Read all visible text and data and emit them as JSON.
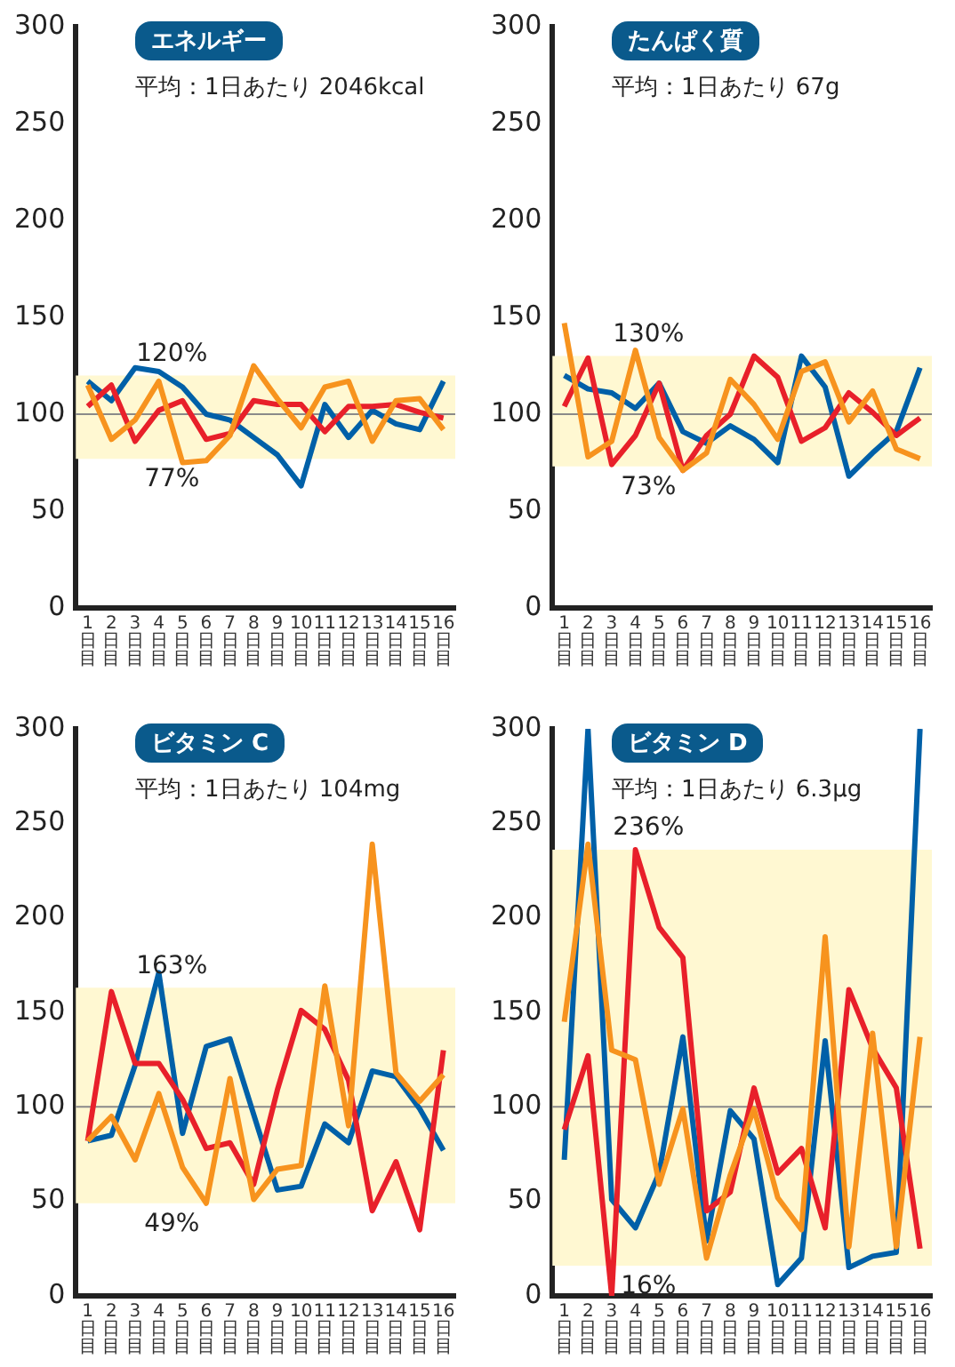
{
  "chart_data": [
    {
      "type": "line",
      "title": "エネルギー",
      "subtitle": "平均：1日あたり 2046kcal",
      "categories": [
        "1日目",
        "2日目",
        "3日目",
        "4日目",
        "5日目",
        "6日目",
        "7日目",
        "8日目",
        "9日目",
        "10日目",
        "11日目",
        "12日目",
        "13日目",
        "14日目",
        "15日目",
        "16日目"
      ],
      "marker": "none",
      "ylim": [
        0,
        300
      ],
      "yticks": [
        0,
        50,
        100,
        150,
        200,
        250,
        300
      ],
      "series": [
        {
          "color": "#f7931e",
          "values": [
            115,
            87,
            97,
            117,
            75,
            76,
            89,
            125,
            108,
            93,
            114,
            117,
            86,
            107,
            108,
            92
          ]
        },
        {
          "color": "#e8202a",
          "values": [
            104,
            115,
            86,
            102,
            107,
            87,
            90,
            107,
            105,
            105,
            91,
            104,
            104,
            105,
            101,
            98
          ]
        },
        {
          "color": "#0060a8",
          "values": [
            117,
            107,
            124,
            122,
            114,
            100,
            97,
            88,
            79,
            63,
            105,
            88,
            102,
            95,
            92,
            117
          ]
        }
      ],
      "bands": [
        {
          "axis": "y",
          "from": 77,
          "to": 120,
          "color": "#fff8d2"
        }
      ],
      "ref_lines": [
        {
          "axis": "y",
          "value": 100,
          "color": "#8a8a8a"
        }
      ],
      "annotations": [
        {
          "text": "120%",
          "y": 120
        },
        {
          "text": "77%",
          "y": 77
        }
      ]
    },
    {
      "type": "line",
      "title": "たんぱく質",
      "subtitle": "平均：1日あたり 67g",
      "categories": [
        "1日目",
        "2日目",
        "3日目",
        "4日目",
        "5日目",
        "6日目",
        "7日目",
        "8日目",
        "9日目",
        "10日目",
        "11日目",
        "12日目",
        "13日目",
        "14日目",
        "15日目",
        "16日目"
      ],
      "marker": "none",
      "ylim": [
        0,
        300
      ],
      "yticks": [
        0,
        50,
        100,
        150,
        200,
        250,
        300
      ],
      "series": [
        {
          "color": "#f7931e",
          "values": [
            147,
            78,
            86,
            133,
            88,
            71,
            80,
            118,
            105,
            87,
            122,
            127,
            96,
            112,
            82,
            77
          ]
        },
        {
          "color": "#e8202a",
          "values": [
            104,
            129,
            74,
            89,
            116,
            71,
            89,
            100,
            130,
            119,
            86,
            93,
            111,
            101,
            89,
            98
          ]
        },
        {
          "color": "#0060a8",
          "values": [
            120,
            113,
            111,
            103,
            116,
            91,
            85,
            94,
            87,
            75,
            130,
            114,
            68,
            80,
            91,
            124
          ]
        }
      ],
      "bands": [
        {
          "axis": "y",
          "from": 73,
          "to": 130,
          "color": "#fff8d2"
        }
      ],
      "ref_lines": [
        {
          "axis": "y",
          "value": 100,
          "color": "#8a8a8a"
        }
      ],
      "annotations": [
        {
          "text": "130%",
          "y": 130
        },
        {
          "text": "73%",
          "y": 73
        }
      ]
    },
    {
      "type": "line",
      "title": "ビタミン C",
      "subtitle": "平均：1日あたり 104mg",
      "categories": [
        "1日目",
        "2日目",
        "3日目",
        "4日目",
        "5日目",
        "6日目",
        "7日目",
        "8日目",
        "9日目",
        "10日目",
        "11日目",
        "12日目",
        "13日目",
        "14日目",
        "15日目",
        "16日目"
      ],
      "marker": "none",
      "ylim": [
        0,
        300
      ],
      "yticks": [
        0,
        50,
        100,
        150,
        200,
        250,
        300
      ],
      "series": [
        {
          "color": "#f7931e",
          "values": [
            82,
            95,
            72,
            107,
            68,
            49,
            115,
            51,
            67,
            69,
            164,
            90,
            239,
            118,
            103,
            117
          ]
        },
        {
          "color": "#e8202a",
          "values": [
            82,
            161,
            123,
            123,
            104,
            78,
            81,
            59,
            109,
            151,
            141,
            114,
            45,
            71,
            35,
            130
          ]
        },
        {
          "color": "#0060a8",
          "values": [
            82,
            85,
            122,
            171,
            86,
            132,
            136,
            96,
            56,
            58,
            91,
            81,
            119,
            116,
            99,
            77
          ]
        }
      ],
      "bands": [
        {
          "axis": "y",
          "from": 49,
          "to": 163,
          "color": "#fff8d2"
        }
      ],
      "ref_lines": [
        {
          "axis": "y",
          "value": 100,
          "color": "#8a8a8a"
        }
      ],
      "annotations": [
        {
          "text": "163%",
          "y": 163
        },
        {
          "text": "49%",
          "y": 49
        }
      ]
    },
    {
      "type": "line",
      "title": "ビタミン D",
      "subtitle": "平均：1日あたり 6.3μg",
      "categories": [
        "1日目",
        "2日目",
        "3日目",
        "4日目",
        "5日目",
        "6日目",
        "7日目",
        "8日目",
        "9日目",
        "10日目",
        "11日目",
        "12日目",
        "13日目",
        "14日目",
        "15日目",
        "16日目"
      ],
      "marker": "none",
      "ylim": [
        0,
        300
      ],
      "yticks": [
        0,
        50,
        100,
        150,
        200,
        250,
        300
      ],
      "series": [
        {
          "color": "#f7931e",
          "values": [
            145,
            239,
            130,
            125,
            59,
            99,
            20,
            64,
            99,
            52,
            35,
            190,
            26,
            139,
            26,
            137
          ]
        },
        {
          "color": "#e8202a",
          "values": [
            88,
            127,
            0,
            236,
            195,
            179,
            45,
            55,
            110,
            65,
            78,
            36,
            162,
            131,
            110,
            25
          ]
        },
        {
          "color": "#0060a8",
          "values": [
            72,
            300,
            51,
            36,
            65,
            137,
            29,
            98,
            83,
            6,
            20,
            135,
            15,
            21,
            23,
            300
          ]
        }
      ],
      "bands": [
        {
          "axis": "y",
          "from": 16,
          "to": 236,
          "color": "#fff8d2"
        }
      ],
      "ref_lines": [
        {
          "axis": "y",
          "value": 100,
          "color": "#8a8a8a"
        }
      ],
      "annotations": [
        {
          "text": "236%",
          "y": 236
        },
        {
          "text": "16%",
          "y": 16
        }
      ]
    }
  ]
}
